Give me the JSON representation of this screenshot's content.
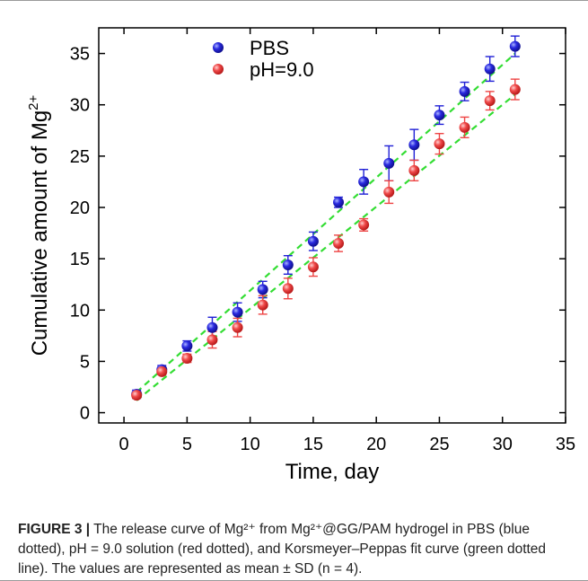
{
  "chart_data": {
    "type": "scatter",
    "xlabel": "Time, day",
    "ylabel_main": "Cumulative amount of Mg",
    "ylabel_sup": "2+",
    "xlim": [
      -2,
      35
    ],
    "ylim": [
      -1,
      37.5
    ],
    "xticks": [
      0,
      5,
      10,
      15,
      20,
      25,
      30,
      35
    ],
    "yticks": [
      0,
      5,
      10,
      15,
      20,
      25,
      30,
      35
    ],
    "legend_position": "top-center",
    "series": [
      {
        "name": "PBS",
        "color": "#1f1fd6",
        "x": [
          1,
          3,
          5,
          7,
          9,
          11,
          13,
          15,
          17,
          19,
          21,
          23,
          25,
          27,
          29,
          31
        ],
        "y": [
          1.8,
          4.2,
          6.5,
          8.3,
          9.8,
          12.0,
          14.4,
          16.7,
          20.5,
          22.5,
          24.3,
          26.1,
          29.0,
          31.3,
          33.5,
          35.7
        ],
        "err": [
          0.4,
          0.4,
          0.5,
          1.0,
          0.9,
          0.8,
          0.9,
          0.9,
          0.5,
          1.2,
          1.7,
          1.5,
          0.9,
          0.9,
          1.2,
          1.0
        ]
      },
      {
        "name": "pH=9.0",
        "color": "#ee4444",
        "x": [
          1,
          3,
          5,
          7,
          9,
          11,
          13,
          15,
          17,
          19,
          21,
          23,
          25,
          27,
          29,
          31
        ],
        "y": [
          1.7,
          4.0,
          5.3,
          7.1,
          8.3,
          10.5,
          12.1,
          14.2,
          16.5,
          18.3,
          21.5,
          23.6,
          26.2,
          27.8,
          30.4,
          31.5
        ],
        "err": [
          0.3,
          0.3,
          0.4,
          0.8,
          0.9,
          0.9,
          1.0,
          0.9,
          0.8,
          0.6,
          1.1,
          1.0,
          1.0,
          1.0,
          0.9,
          1.0
        ]
      }
    ],
    "fits": [
      {
        "color": "#33dd33",
        "x": [
          1,
          31
        ],
        "y": [
          2.0,
          35.0
        ]
      },
      {
        "color": "#33dd33",
        "x": [
          1,
          31
        ],
        "y": [
          1.2,
          31.0
        ]
      }
    ]
  },
  "caption": {
    "label": "FIGURE 3 |",
    "text": "The release curve of Mg²⁺ from Mg²⁺@GG/PAM hydrogel in PBS (blue dotted), pH = 9.0 solution (red dotted), and Korsmeyer–Peppas fit curve (green dotted line). The values are represented as mean ± SD (n = 4)."
  }
}
